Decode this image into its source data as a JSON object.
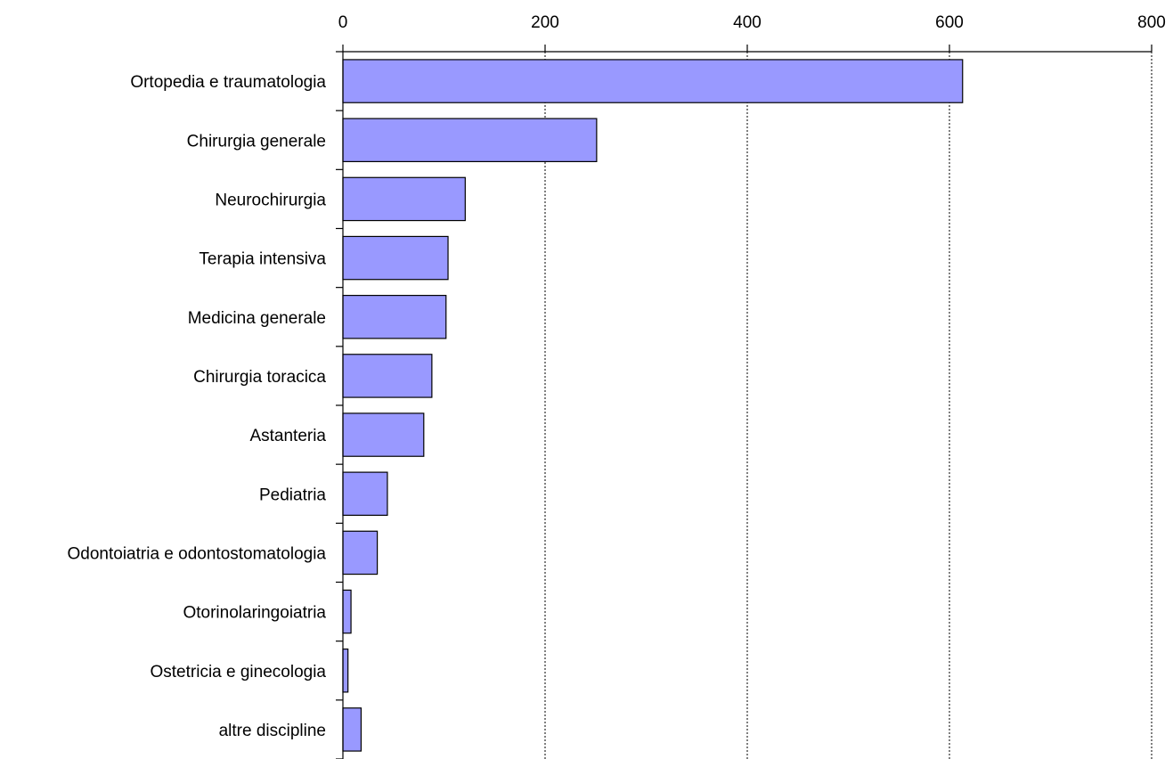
{
  "chart_data": {
    "type": "bar",
    "orientation": "horizontal",
    "categories": [
      "Ortopedia e traumatologia",
      "Chirurgia generale",
      "Neurochirurgia",
      "Terapia intensiva",
      "Medicina generale",
      "Chirurgia toracica",
      "Astanteria",
      "Pediatria",
      "Odontoiatria e odontostomatologia",
      "Otorinolaringoiatria",
      "Ostetricia e ginecologia",
      "altre discipline"
    ],
    "values": [
      613,
      251,
      121,
      104,
      102,
      88,
      80,
      44,
      34,
      8,
      5,
      18
    ],
    "xlim": [
      0,
      800
    ],
    "xticks": [
      0,
      200,
      400,
      600,
      800
    ],
    "xtick_labels": [
      "0",
      "200",
      "400",
      "600",
      "800"
    ],
    "axis_position": "top",
    "grid": true,
    "title": "",
    "xlabel": "",
    "ylabel": "",
    "bar_color": "#9999ff",
    "edge_color": "#000000"
  }
}
